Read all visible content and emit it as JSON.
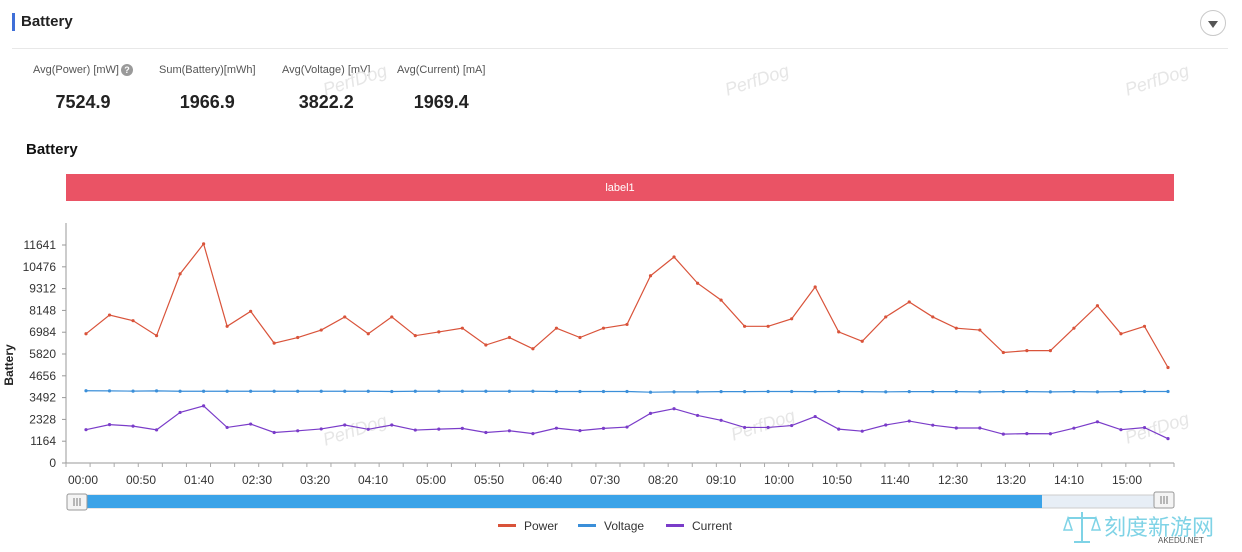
{
  "panel": {
    "title": "Battery"
  },
  "stats": [
    {
      "label": "Avg(Power) [mW]",
      "value": "7524.9",
      "help": true
    },
    {
      "label": "Sum(Battery)[mWh]",
      "value": "1966.9"
    },
    {
      "label": "Avg(Voltage) [mV]",
      "value": "3822.2"
    },
    {
      "label": "Avg(Current) [mA]",
      "value": "1969.4"
    }
  ],
  "watermark": "PerfDog",
  "logo": {
    "text": "刻度新游网",
    "sub": "AKEDU.NET"
  },
  "chart_data": {
    "type": "line",
    "title": "Battery",
    "band_label": "label1",
    "ylabel": "Battery",
    "xlabel": "",
    "ylim": [
      0,
      12000
    ],
    "y_ticks": [
      "0",
      "1164",
      "2328",
      "3492",
      "4656",
      "5820",
      "6984",
      "8148",
      "9312",
      "10476",
      "11641"
    ],
    "x_ticks": [
      "00:00",
      "00:50",
      "01:40",
      "02:30",
      "03:20",
      "04:10",
      "05:00",
      "05:50",
      "06:40",
      "07:30",
      "08:20",
      "09:10",
      "10:00",
      "10:50",
      "11:40",
      "12:30",
      "13:20",
      "14:10",
      "15:00"
    ],
    "legend_position": "bottom",
    "series": [
      {
        "name": "Power",
        "color": "#d9533a",
        "values": [
          6900,
          7900,
          7600,
          6800,
          10100,
          11700,
          7300,
          8100,
          6400,
          6700,
          7100,
          7800,
          6900,
          7800,
          6800,
          7000,
          7200,
          6300,
          6700,
          6100,
          7200,
          6700,
          7200,
          7400,
          10000,
          11000,
          9600,
          8700,
          7300,
          7300,
          7700,
          9400,
          7000,
          6500,
          7800,
          8600,
          7800,
          7200,
          7100,
          5900,
          6000,
          6000,
          7200,
          8400,
          6900,
          7300,
          5100
        ]
      },
      {
        "name": "Voltage",
        "color": "#3b8fd9",
        "values": [
          3860,
          3850,
          3840,
          3850,
          3830,
          3830,
          3830,
          3830,
          3830,
          3830,
          3830,
          3830,
          3830,
          3820,
          3830,
          3830,
          3830,
          3830,
          3830,
          3830,
          3820,
          3820,
          3820,
          3820,
          3780,
          3800,
          3800,
          3810,
          3810,
          3820,
          3820,
          3810,
          3820,
          3810,
          3800,
          3810,
          3810,
          3810,
          3800,
          3810,
          3810,
          3800,
          3810,
          3800,
          3810,
          3820,
          3820
        ]
      },
      {
        "name": "Current",
        "color": "#7a3cc9",
        "values": [
          1780,
          2050,
          1970,
          1770,
          2700,
          3050,
          1900,
          2080,
          1630,
          1720,
          1820,
          2030,
          1800,
          2030,
          1760,
          1810,
          1850,
          1630,
          1720,
          1570,
          1860,
          1730,
          1850,
          1920,
          2650,
          2900,
          2540,
          2280,
          1900,
          1900,
          2000,
          2480,
          1810,
          1700,
          2030,
          2240,
          2020,
          1870,
          1870,
          1540,
          1570,
          1560,
          1860,
          2200,
          1780,
          1890,
          1300
        ]
      }
    ]
  }
}
